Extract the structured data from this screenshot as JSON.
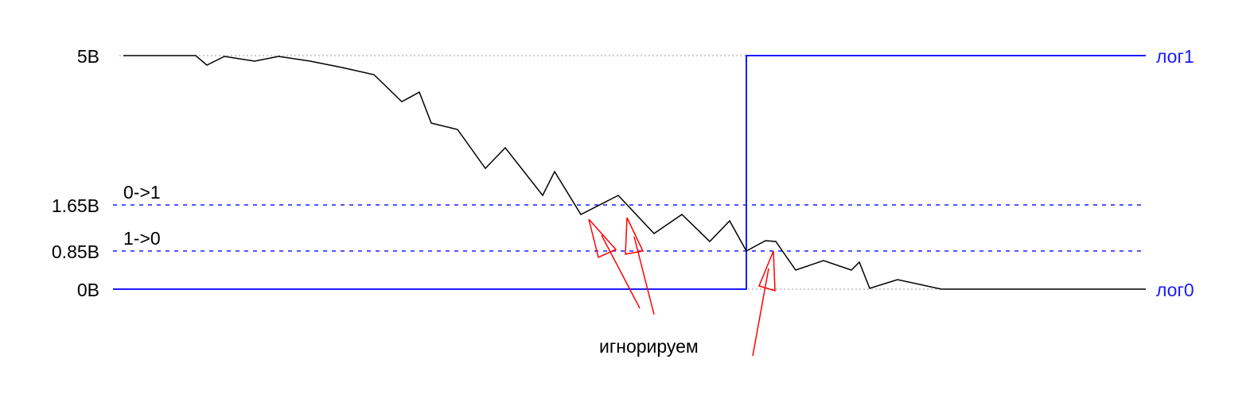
{
  "levels": {
    "v5": "5В",
    "v165": "1.65В",
    "v085": "0.85В",
    "v0": "0В"
  },
  "thresholds": {
    "rise": "0->1",
    "fall": "1->0"
  },
  "logic": {
    "high": "лог1",
    "low": "лог0"
  },
  "annotation": "игнорируем",
  "colors": {
    "signal": "#000000",
    "logic": "#1a1aff",
    "threshold": "#1a1aff",
    "arrow": "#ff0000",
    "reference": "#999999"
  }
}
